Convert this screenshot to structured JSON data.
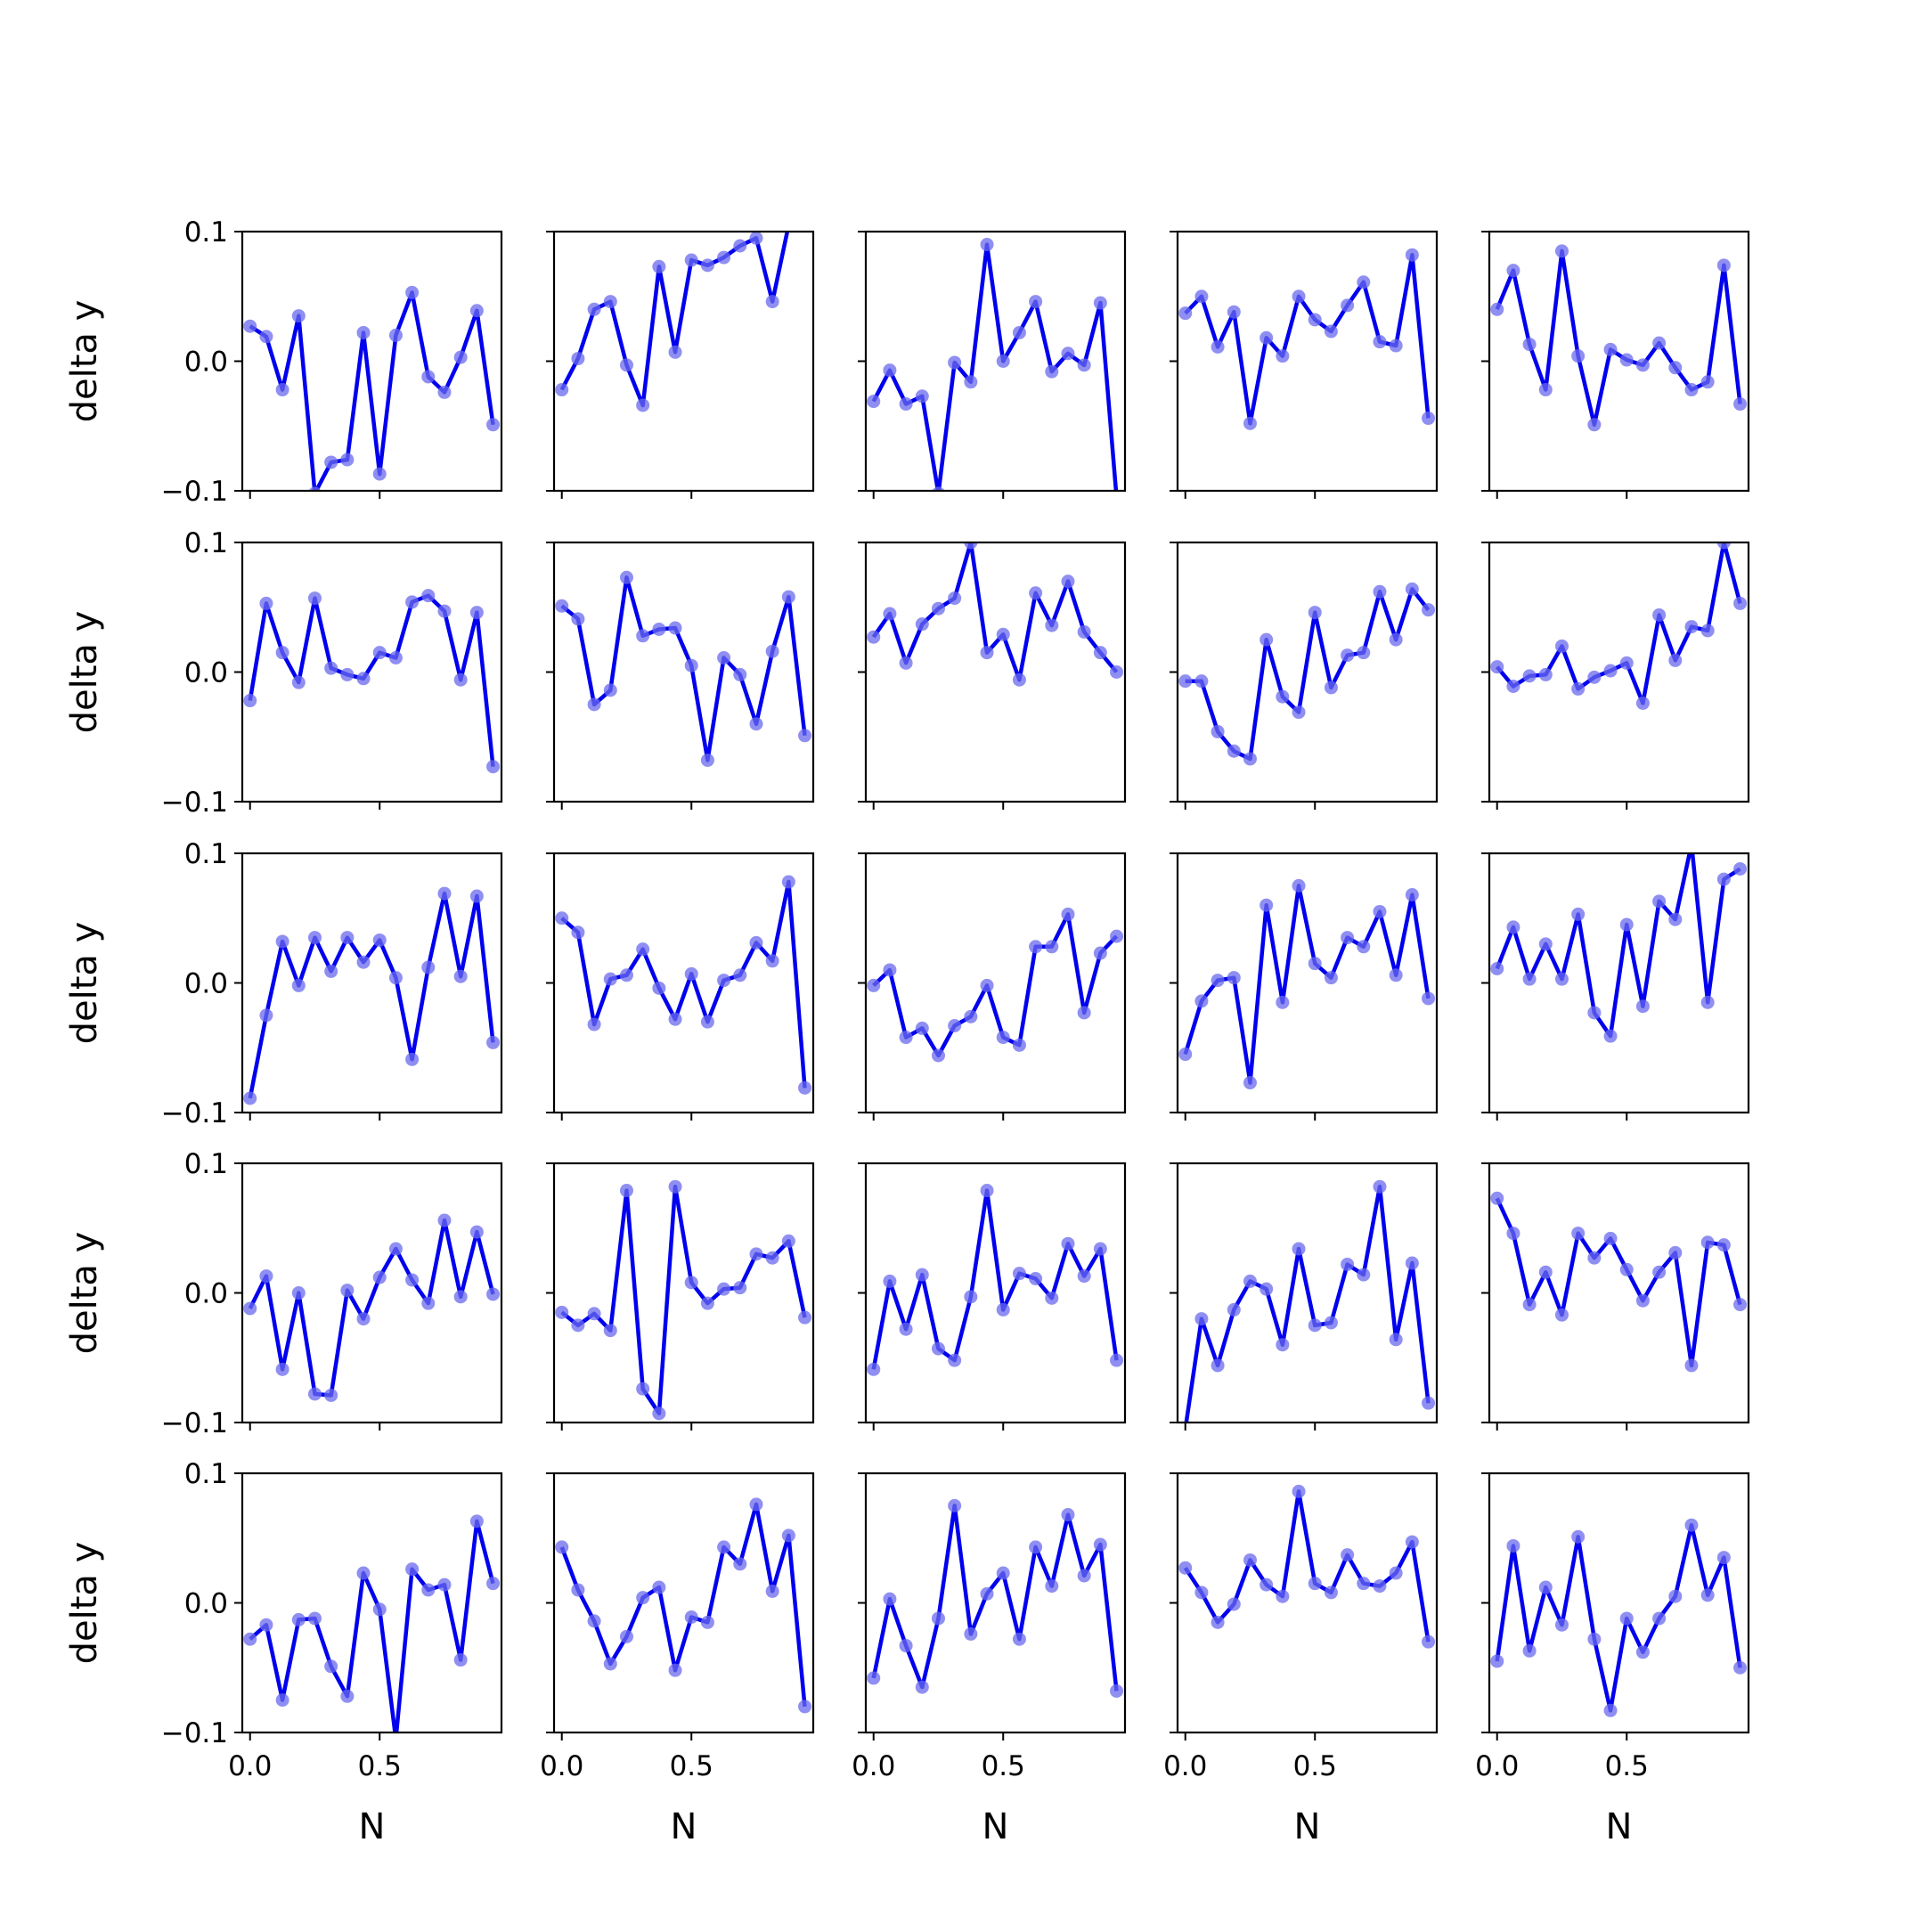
{
  "figure": {
    "rows": 5,
    "cols": 5,
    "line_color": "#0000ee",
    "marker_color": "#6a6aee"
  },
  "chart_data": {
    "type": "line",
    "xlabel": "N",
    "ylabel": "delta y",
    "xlim": [
      -0.03,
      0.97
    ],
    "ylim": [
      -0.1,
      0.1
    ],
    "xticks": [
      0.0,
      0.5
    ],
    "xtick_labels": [
      "0.0",
      "0.5"
    ],
    "yticks": [
      -0.1,
      0.0,
      0.1
    ],
    "ytick_labels": [
      "−0.1",
      "0.0",
      "0.1"
    ],
    "x": [
      0.0,
      0.0625,
      0.125,
      0.1875,
      0.25,
      0.3125,
      0.375,
      0.4375,
      0.5,
      0.5625,
      0.625,
      0.6875,
      0.75,
      0.8125,
      0.875,
      0.9375
    ],
    "panels": [
      {
        "row": 0,
        "col": 0,
        "values": [
          0.027,
          0.019,
          -0.022,
          0.035,
          -0.102,
          -0.078,
          -0.076,
          0.022,
          -0.087,
          0.02,
          0.053,
          -0.012,
          -0.024,
          0.003,
          0.039,
          -0.049
        ]
      },
      {
        "row": 0,
        "col": 1,
        "values": [
          -0.022,
          0.002,
          0.04,
          0.046,
          -0.003,
          -0.034,
          0.073,
          0.007,
          0.078,
          0.074,
          0.08,
          0.089,
          0.095,
          0.046,
          0.105,
          0.12
        ]
      },
      {
        "row": 0,
        "col": 2,
        "values": [
          -0.031,
          -0.007,
          -0.033,
          -0.027,
          -0.102,
          -0.001,
          -0.016,
          0.09,
          0.0,
          0.022,
          0.046,
          -0.008,
          0.006,
          -0.003,
          0.045,
          -0.105
        ]
      },
      {
        "row": 0,
        "col": 3,
        "values": [
          0.037,
          0.05,
          0.011,
          0.038,
          -0.048,
          0.018,
          0.004,
          0.05,
          0.032,
          0.023,
          0.043,
          0.061,
          0.015,
          0.012,
          0.082,
          -0.044
        ]
      },
      {
        "row": 0,
        "col": 4,
        "values": [
          0.04,
          0.07,
          0.013,
          -0.022,
          0.085,
          0.004,
          -0.049,
          0.009,
          0.001,
          -0.003,
          0.014,
          -0.005,
          -0.022,
          -0.016,
          0.074,
          -0.033
        ]
      },
      {
        "row": 1,
        "col": 0,
        "values": [
          -0.022,
          0.053,
          0.015,
          -0.008,
          0.057,
          0.003,
          -0.002,
          -0.005,
          0.015,
          0.011,
          0.054,
          0.059,
          0.047,
          -0.006,
          0.046,
          -0.073
        ]
      },
      {
        "row": 1,
        "col": 1,
        "values": [
          0.051,
          0.041,
          -0.025,
          -0.014,
          0.073,
          0.028,
          0.033,
          0.034,
          0.005,
          -0.068,
          0.011,
          -0.002,
          -0.04,
          0.016,
          0.058,
          -0.049
        ]
      },
      {
        "row": 1,
        "col": 2,
        "values": [
          0.027,
          0.045,
          0.007,
          0.037,
          0.049,
          0.057,
          0.1,
          0.015,
          0.029,
          -0.006,
          0.061,
          0.036,
          0.07,
          0.031,
          0.015,
          0.0
        ]
      },
      {
        "row": 1,
        "col": 3,
        "values": [
          -0.007,
          -0.007,
          -0.046,
          -0.061,
          -0.067,
          0.025,
          -0.019,
          -0.031,
          0.046,
          -0.012,
          0.013,
          0.015,
          0.062,
          0.025,
          0.064,
          0.048
        ]
      },
      {
        "row": 1,
        "col": 4,
        "values": [
          0.004,
          -0.011,
          -0.003,
          -0.002,
          0.02,
          -0.013,
          -0.004,
          0.001,
          0.007,
          -0.024,
          0.044,
          0.009,
          0.035,
          0.032,
          0.1,
          0.053
        ]
      },
      {
        "row": 2,
        "col": 0,
        "values": [
          -0.089,
          -0.025,
          0.032,
          -0.002,
          0.035,
          0.009,
          0.035,
          0.016,
          0.033,
          0.004,
          -0.059,
          0.012,
          0.069,
          0.005,
          0.067,
          -0.046
        ]
      },
      {
        "row": 2,
        "col": 1,
        "values": [
          0.05,
          0.039,
          -0.032,
          0.003,
          0.006,
          0.026,
          -0.004,
          -0.028,
          0.007,
          -0.03,
          0.002,
          0.006,
          0.031,
          0.017,
          0.078,
          -0.081
        ]
      },
      {
        "row": 2,
        "col": 2,
        "values": [
          -0.002,
          0.01,
          -0.042,
          -0.035,
          -0.056,
          -0.033,
          -0.026,
          -0.002,
          -0.042,
          -0.048,
          0.028,
          0.028,
          0.053,
          -0.023,
          0.023,
          0.036
        ]
      },
      {
        "row": 2,
        "col": 3,
        "values": [
          -0.055,
          -0.014,
          0.002,
          0.004,
          -0.077,
          0.06,
          -0.015,
          0.075,
          0.015,
          0.004,
          0.035,
          0.028,
          0.055,
          0.006,
          0.068,
          -0.012
        ]
      },
      {
        "row": 2,
        "col": 4,
        "values": [
          0.011,
          0.043,
          0.003,
          0.03,
          0.003,
          0.053,
          -0.023,
          -0.041,
          0.045,
          -0.018,
          0.063,
          0.049,
          0.107,
          -0.015,
          0.08,
          0.088
        ]
      },
      {
        "row": 3,
        "col": 0,
        "values": [
          -0.012,
          0.013,
          -0.059,
          0.0,
          -0.078,
          -0.079,
          0.002,
          -0.02,
          0.012,
          0.034,
          0.01,
          -0.008,
          0.056,
          -0.003,
          0.047,
          -0.001
        ]
      },
      {
        "row": 3,
        "col": 1,
        "values": [
          -0.015,
          -0.025,
          -0.016,
          -0.029,
          0.079,
          -0.074,
          -0.093,
          0.082,
          0.008,
          -0.008,
          0.003,
          0.004,
          0.03,
          0.027,
          0.04,
          -0.019
        ]
      },
      {
        "row": 3,
        "col": 2,
        "values": [
          -0.059,
          0.009,
          -0.028,
          0.014,
          -0.043,
          -0.052,
          -0.003,
          0.079,
          -0.013,
          0.015,
          0.011,
          -0.004,
          0.038,
          0.013,
          0.034,
          -0.052
        ]
      },
      {
        "row": 3,
        "col": 3,
        "values": [
          -0.105,
          -0.02,
          -0.056,
          -0.013,
          0.009,
          0.003,
          -0.04,
          0.034,
          -0.025,
          -0.023,
          0.022,
          0.014,
          0.082,
          -0.036,
          0.023,
          -0.085
        ]
      },
      {
        "row": 3,
        "col": 4,
        "values": [
          0.073,
          0.046,
          -0.009,
          0.016,
          -0.017,
          0.046,
          0.027,
          0.042,
          0.018,
          -0.006,
          0.016,
          0.031,
          -0.056,
          0.039,
          0.037,
          -0.009
        ]
      },
      {
        "row": 4,
        "col": 0,
        "values": [
          -0.028,
          -0.017,
          -0.075,
          -0.013,
          -0.012,
          -0.049,
          -0.072,
          0.023,
          -0.005,
          -0.105,
          0.026,
          0.01,
          0.014,
          -0.044,
          0.063,
          0.015
        ]
      },
      {
        "row": 4,
        "col": 1,
        "values": [
          0.043,
          0.01,
          -0.014,
          -0.047,
          -0.026,
          0.004,
          0.012,
          -0.052,
          -0.011,
          -0.015,
          0.043,
          0.03,
          0.076,
          0.009,
          0.052,
          -0.08
        ]
      },
      {
        "row": 4,
        "col": 2,
        "values": [
          -0.058,
          0.003,
          -0.033,
          -0.065,
          -0.012,
          0.075,
          -0.024,
          0.007,
          0.023,
          -0.028,
          0.043,
          0.013,
          0.068,
          0.021,
          0.045,
          -0.068
        ]
      },
      {
        "row": 4,
        "col": 3,
        "values": [
          0.027,
          0.008,
          -0.015,
          -0.001,
          0.033,
          0.014,
          0.005,
          0.086,
          0.015,
          0.008,
          0.037,
          0.015,
          0.013,
          0.023,
          0.047,
          -0.03
        ]
      },
      {
        "row": 4,
        "col": 4,
        "values": [
          -0.045,
          0.044,
          -0.037,
          0.012,
          -0.017,
          0.051,
          -0.028,
          -0.083,
          -0.012,
          -0.038,
          -0.012,
          0.005,
          0.06,
          0.006,
          0.035,
          -0.05
        ]
      }
    ]
  }
}
